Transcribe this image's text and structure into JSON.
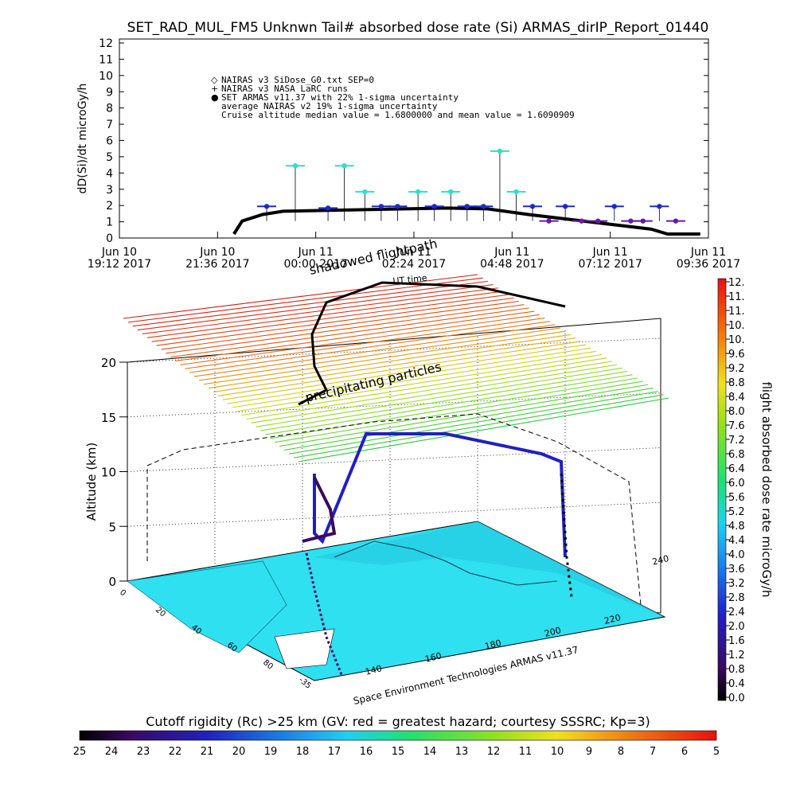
{
  "top_chart": {
    "title": "SET_RAD_MUL_FM5 Unknwn Tail#  absorbed dose rate (Si) ARMAS_dirIP_Report_01440",
    "ylabel": "dD(Si)/dt microGy/h",
    "y_ticks": [
      "0",
      "1",
      "2",
      "3",
      "4",
      "5",
      "6",
      "7",
      "8",
      "9",
      "10",
      "11",
      "12"
    ],
    "x_ticks": [
      {
        "line1": "Jun 10",
        "line2": "19:12 2017"
      },
      {
        "line1": "Jun 10",
        "line2": "21:36 2017"
      },
      {
        "line1": "Jun 11",
        "line2": "00:00 2017"
      },
      {
        "line1": "Jun 11",
        "line2": "02:24 2017"
      },
      {
        "line1": "Jun 11",
        "line2": "04:48 2017"
      },
      {
        "line1": "Jun 11",
        "line2": "07:12 2017"
      },
      {
        "line1": "Jun 11",
        "line2": "09:36 2017"
      }
    ],
    "legend": [
      {
        "symbol": "◇",
        "text": "NAIRAS v3 SiDose_G0.txt SEP=0"
      },
      {
        "symbol": "+",
        "text": "NAIRAS v3 NASA LaRC runs"
      },
      {
        "symbol": "●",
        "text": "SET ARMAS v11.37 with 22% 1-sigma uncertainty"
      },
      {
        "symbol": "",
        "text": "average NAIRAS v2 19% 1-sigma uncertainty"
      },
      {
        "symbol": "",
        "text": "Cruise altitude median value = 1.6800000 and mean value = 1.6090909"
      }
    ]
  },
  "chart_data": [
    {
      "type": "scatter",
      "title": "SET_RAD_MUL_FM5 Unknwn Tail#  absorbed dose rate (Si) ARMAS_dirIP_Report_01440",
      "ylabel": "dD(Si)/dt microGy/h",
      "xlim": [
        "Jun 10 19:12 2017",
        "Jun 11 09:36 2017"
      ],
      "ylim": [
        0,
        12
      ],
      "series": [
        {
          "name": "SET ARMAS v11.37 with 22% 1-sigma uncertainty",
          "x_hours": [
            3.6,
            4.3,
            5.1,
            5.5,
            6.0,
            6.4,
            6.8,
            7.3,
            7.7,
            8.1,
            8.5,
            8.9,
            9.3,
            9.7,
            10.1,
            10.5,
            10.9,
            11.3,
            11.7,
            12.1,
            12.5,
            12.8,
            13.2,
            13.6
          ],
          "values": [
            1.7,
            4.2,
            1.6,
            4.2,
            2.6,
            1.7,
            1.7,
            2.6,
            1.7,
            2.6,
            1.7,
            1.7,
            5.1,
            2.6,
            1.7,
            0.8,
            1.7,
            0.8,
            0.8,
            1.7,
            0.8,
            0.8,
            1.7,
            0.8
          ],
          "hours_reference": "Jun 10 19:12 2017"
        },
        {
          "name": "NAIRAS v3 NASA LaRC runs",
          "x_hours": [
            2.8,
            3.0,
            3.5,
            4.0,
            5.0,
            6.0,
            7.0,
            8.0,
            9.0,
            10.0,
            11.0,
            12.0,
            13.0,
            13.4,
            13.6,
            14.2
          ],
          "values": [
            0.0,
            0.8,
            1.2,
            1.4,
            1.45,
            1.5,
            1.55,
            1.6,
            1.55,
            1.2,
            0.9,
            0.6,
            0.3,
            0.0,
            0.0,
            0.0
          ],
          "hours_reference": "Jun 10 19:12 2017"
        }
      ]
    },
    {
      "type": "heatmap",
      "zlabel": "flight absorbed dose rate microGy/h",
      "colorbar_ticks": [
        "12.",
        "11.",
        "11.",
        "10.",
        "10.",
        "9.6",
        "9.2",
        "8.8",
        "8.4",
        "8.0",
        "7.6",
        "7.2",
        "6.8",
        "6.4",
        "6.0",
        "5.6",
        "5.2",
        "4.8",
        "4.4",
        "4.0",
        "3.6",
        "3.2",
        "2.8",
        "2.4",
        "2.0",
        "1.6",
        "1.2",
        "0.8",
        "0.4",
        "0.0"
      ],
      "altitude_ticks": [
        "0",
        "5",
        "10",
        "15",
        "20"
      ],
      "ylabel": "Altitude (km)"
    }
  ],
  "three_d": {
    "title_shadow": "shadowed flightpath",
    "ut_label": "UT time",
    "layer_label": "precipitating particles",
    "altitude_label": "Altitude (km)",
    "altitude_ticks": [
      "0",
      "5",
      "10",
      "15",
      "20"
    ],
    "lon_ticks": [
      "140",
      "160",
      "180",
      "200",
      "220",
      "240"
    ],
    "lat_ticks": [
      "0",
      "20",
      "40",
      "60",
      "80",
      "-35"
    ],
    "credit": "Space Environment Technologies ARMAS v11.37"
  },
  "colorbar_right": {
    "label": "flight absorbed dose rate microGy/h",
    "ticks": [
      "12.",
      "11.",
      "11.",
      "10.",
      "10.",
      "9.6",
      "9.2",
      "8.8",
      "8.4",
      "8.0",
      "7.6",
      "7.2",
      "6.8",
      "6.4",
      "6.0",
      "5.6",
      "5.2",
      "4.8",
      "4.4",
      "4.0",
      "3.6",
      "3.2",
      "2.8",
      "2.4",
      "2.0",
      "1.6",
      "1.2",
      "0.8",
      "0.4",
      "0.0"
    ]
  },
  "colorbar_bottom": {
    "title": "Cutoff rigidity (Rc) >25 km (GV: red = greatest hazard; courtesy SSSRC; Kp=3)",
    "ticks": [
      "25",
      "24",
      "23",
      "22",
      "21",
      "20",
      "19",
      "18",
      "17",
      "16",
      "15",
      "14",
      "13",
      "12",
      "11",
      "10",
      "9",
      "8",
      "7",
      "6",
      "5"
    ]
  },
  "colors": {
    "armas_blue": "#1a2ad0",
    "armas_cyan": "#2ee0c8",
    "armas_purple": "#6a1aa0",
    "nairas_black": "#000000",
    "map_land": "#2fe0f0",
    "layer_red": "#d41a10"
  }
}
